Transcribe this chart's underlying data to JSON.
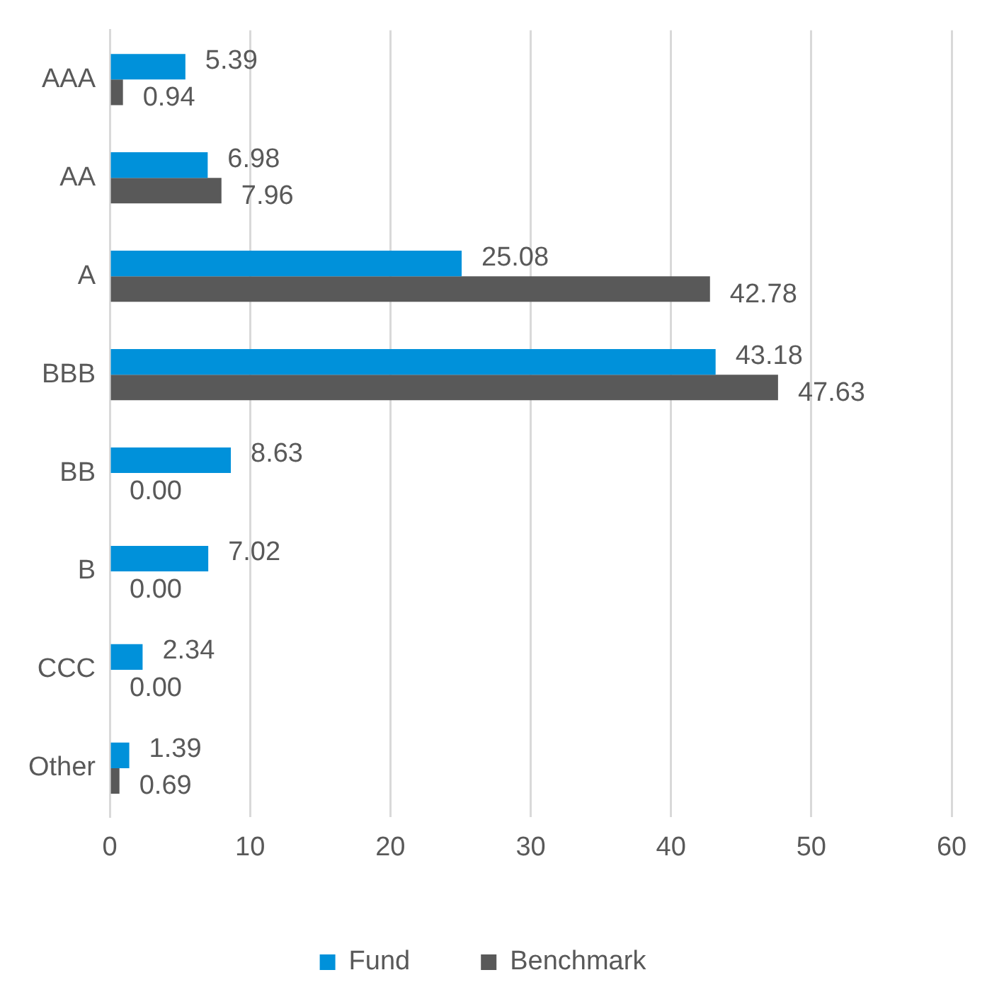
{
  "chart_data": {
    "type": "bar",
    "orientation": "horizontal",
    "categories": [
      "AAA",
      "AA",
      "A",
      "BBB",
      "BB",
      "B",
      "CCC",
      "Other"
    ],
    "series": [
      {
        "name": "Fund",
        "color": "#0091da",
        "values": [
          5.39,
          6.98,
          25.08,
          43.18,
          8.63,
          7.02,
          2.34,
          1.39
        ],
        "value_labels": [
          "5.39",
          "6.98",
          "25.08",
          "43.18",
          "8.63",
          "7.02",
          "2.34",
          "1.39"
        ]
      },
      {
        "name": "Benchmark",
        "color": "#595959",
        "values": [
          0.94,
          7.96,
          42.78,
          47.63,
          0.0,
          0.0,
          0.0,
          0.69
        ],
        "value_labels": [
          "0.94",
          "7.96",
          "42.78",
          "47.63",
          "0.00",
          "0.00",
          "0.00",
          "0.69"
        ]
      }
    ],
    "xlim": [
      0,
      60
    ],
    "xticks": [
      0,
      10,
      20,
      30,
      40,
      50,
      60
    ],
    "grid": "x",
    "legend": "bottom"
  }
}
